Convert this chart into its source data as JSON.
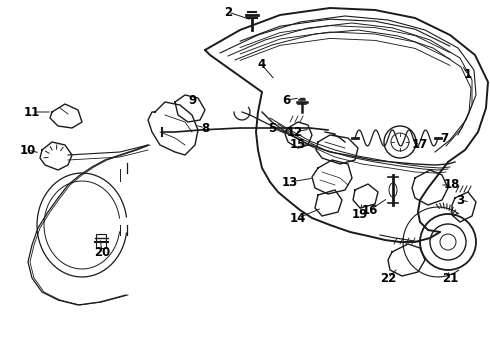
{
  "bg_color": "#ffffff",
  "line_color": "#1a1a1a",
  "label_color": "#000000",
  "label_fontsize": 8.5,
  "fig_w": 4.9,
  "fig_h": 3.6,
  "dpi": 100
}
